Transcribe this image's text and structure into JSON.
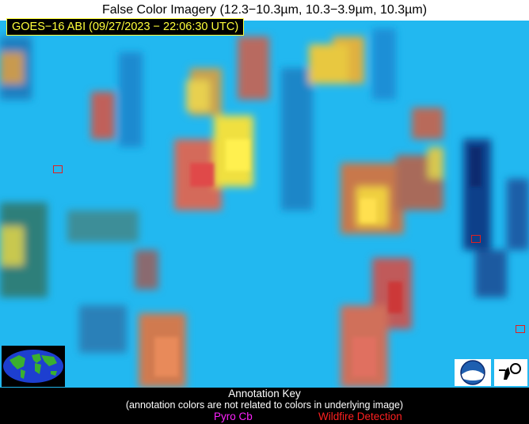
{
  "title": "False Color Imagery (12.3−10.3µm, 10.3−3.9µm, 10.3µm)",
  "satellite_label": "GOES−16 ABI (09/27/2023 − 22:06:30 UTC)",
  "annotation_key": {
    "title": "Annotation Key",
    "subtitle": "(annotation colors are not related to colors in underlying image)",
    "pyro_cb": "Pyro Cb",
    "wildfire": "Wildfire Detection"
  },
  "colors": {
    "background_cyan": "#22b8f0",
    "pyro_cb": "#ff22ff",
    "wildfire": "#ff2020",
    "label_text": "#ffff3a"
  },
  "logos": [
    "globe-icon",
    "noaa-logo",
    "cimss-logo"
  ]
}
